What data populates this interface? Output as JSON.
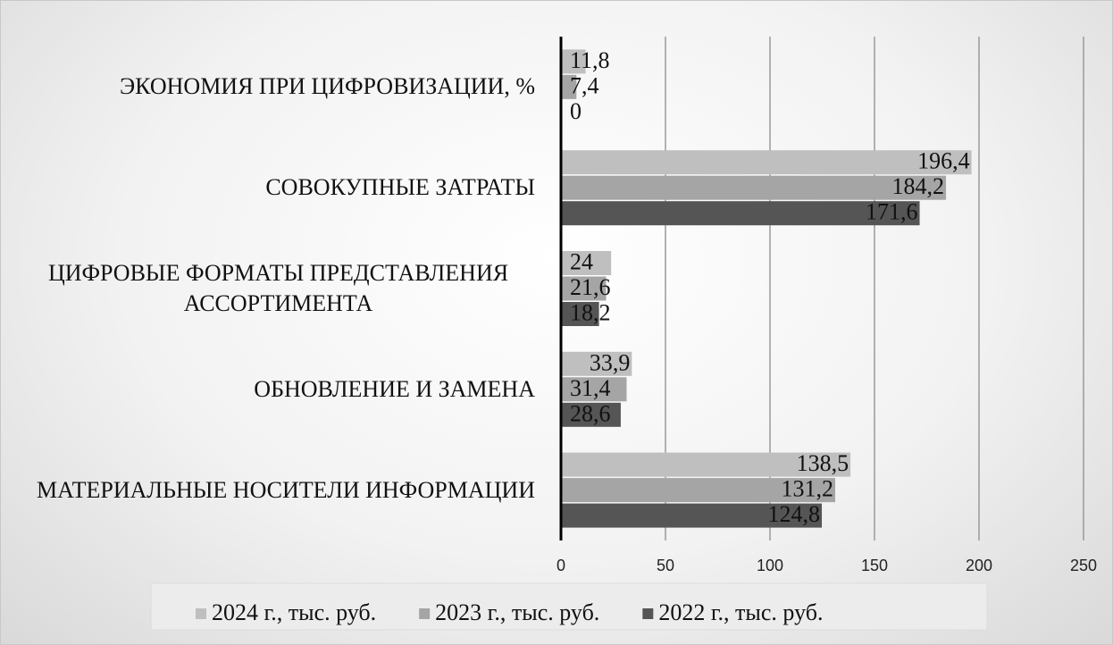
{
  "chart_data": {
    "type": "hbar",
    "categories": [
      "ЭКОНОМИЯ ПРИ ЦИФРОВИЗАЦИИ, %",
      "СОВОКУПНЫЕ ЗАТРАТЫ",
      "ЦИФРОВЫЕ ФОРМАТЫ ПРЕДСТАВЛЕНИЯ АССОРТИМЕНТА",
      "ОБНОВЛЕНИЕ И ЗАМЕНА",
      "МАТЕРИАЛЬНЫЕ НОСИТЕЛИ ИНФОРМАЦИИ"
    ],
    "series": [
      {
        "name": "2024 г., тыс. руб.",
        "color": "#bfbfbf",
        "values": [
          11.8,
          196.4,
          24,
          33.9,
          138.5
        ],
        "value_labels": [
          "11,8",
          "196,4",
          "24",
          "33,9",
          "138,5"
        ]
      },
      {
        "name": "2023 г., тыс. руб.",
        "color": "#a5a5a5",
        "values": [
          7.4,
          184.2,
          21.6,
          31.4,
          131.2
        ],
        "value_labels": [
          "7,4",
          "184,2",
          "21,6",
          "31,4",
          "131,2"
        ]
      },
      {
        "name": "2022 г., тыс. руб.",
        "color": "#555555",
        "values": [
          0,
          171.6,
          18.2,
          28.6,
          124.8
        ],
        "value_labels": [
          "0",
          "171,6",
          "18,2",
          "28,6",
          "124,8"
        ]
      }
    ],
    "xlim": [
      0,
      250
    ],
    "xticks": [
      0,
      50,
      100,
      150,
      200,
      250
    ],
    "grid": true,
    "legend": "bottom"
  }
}
